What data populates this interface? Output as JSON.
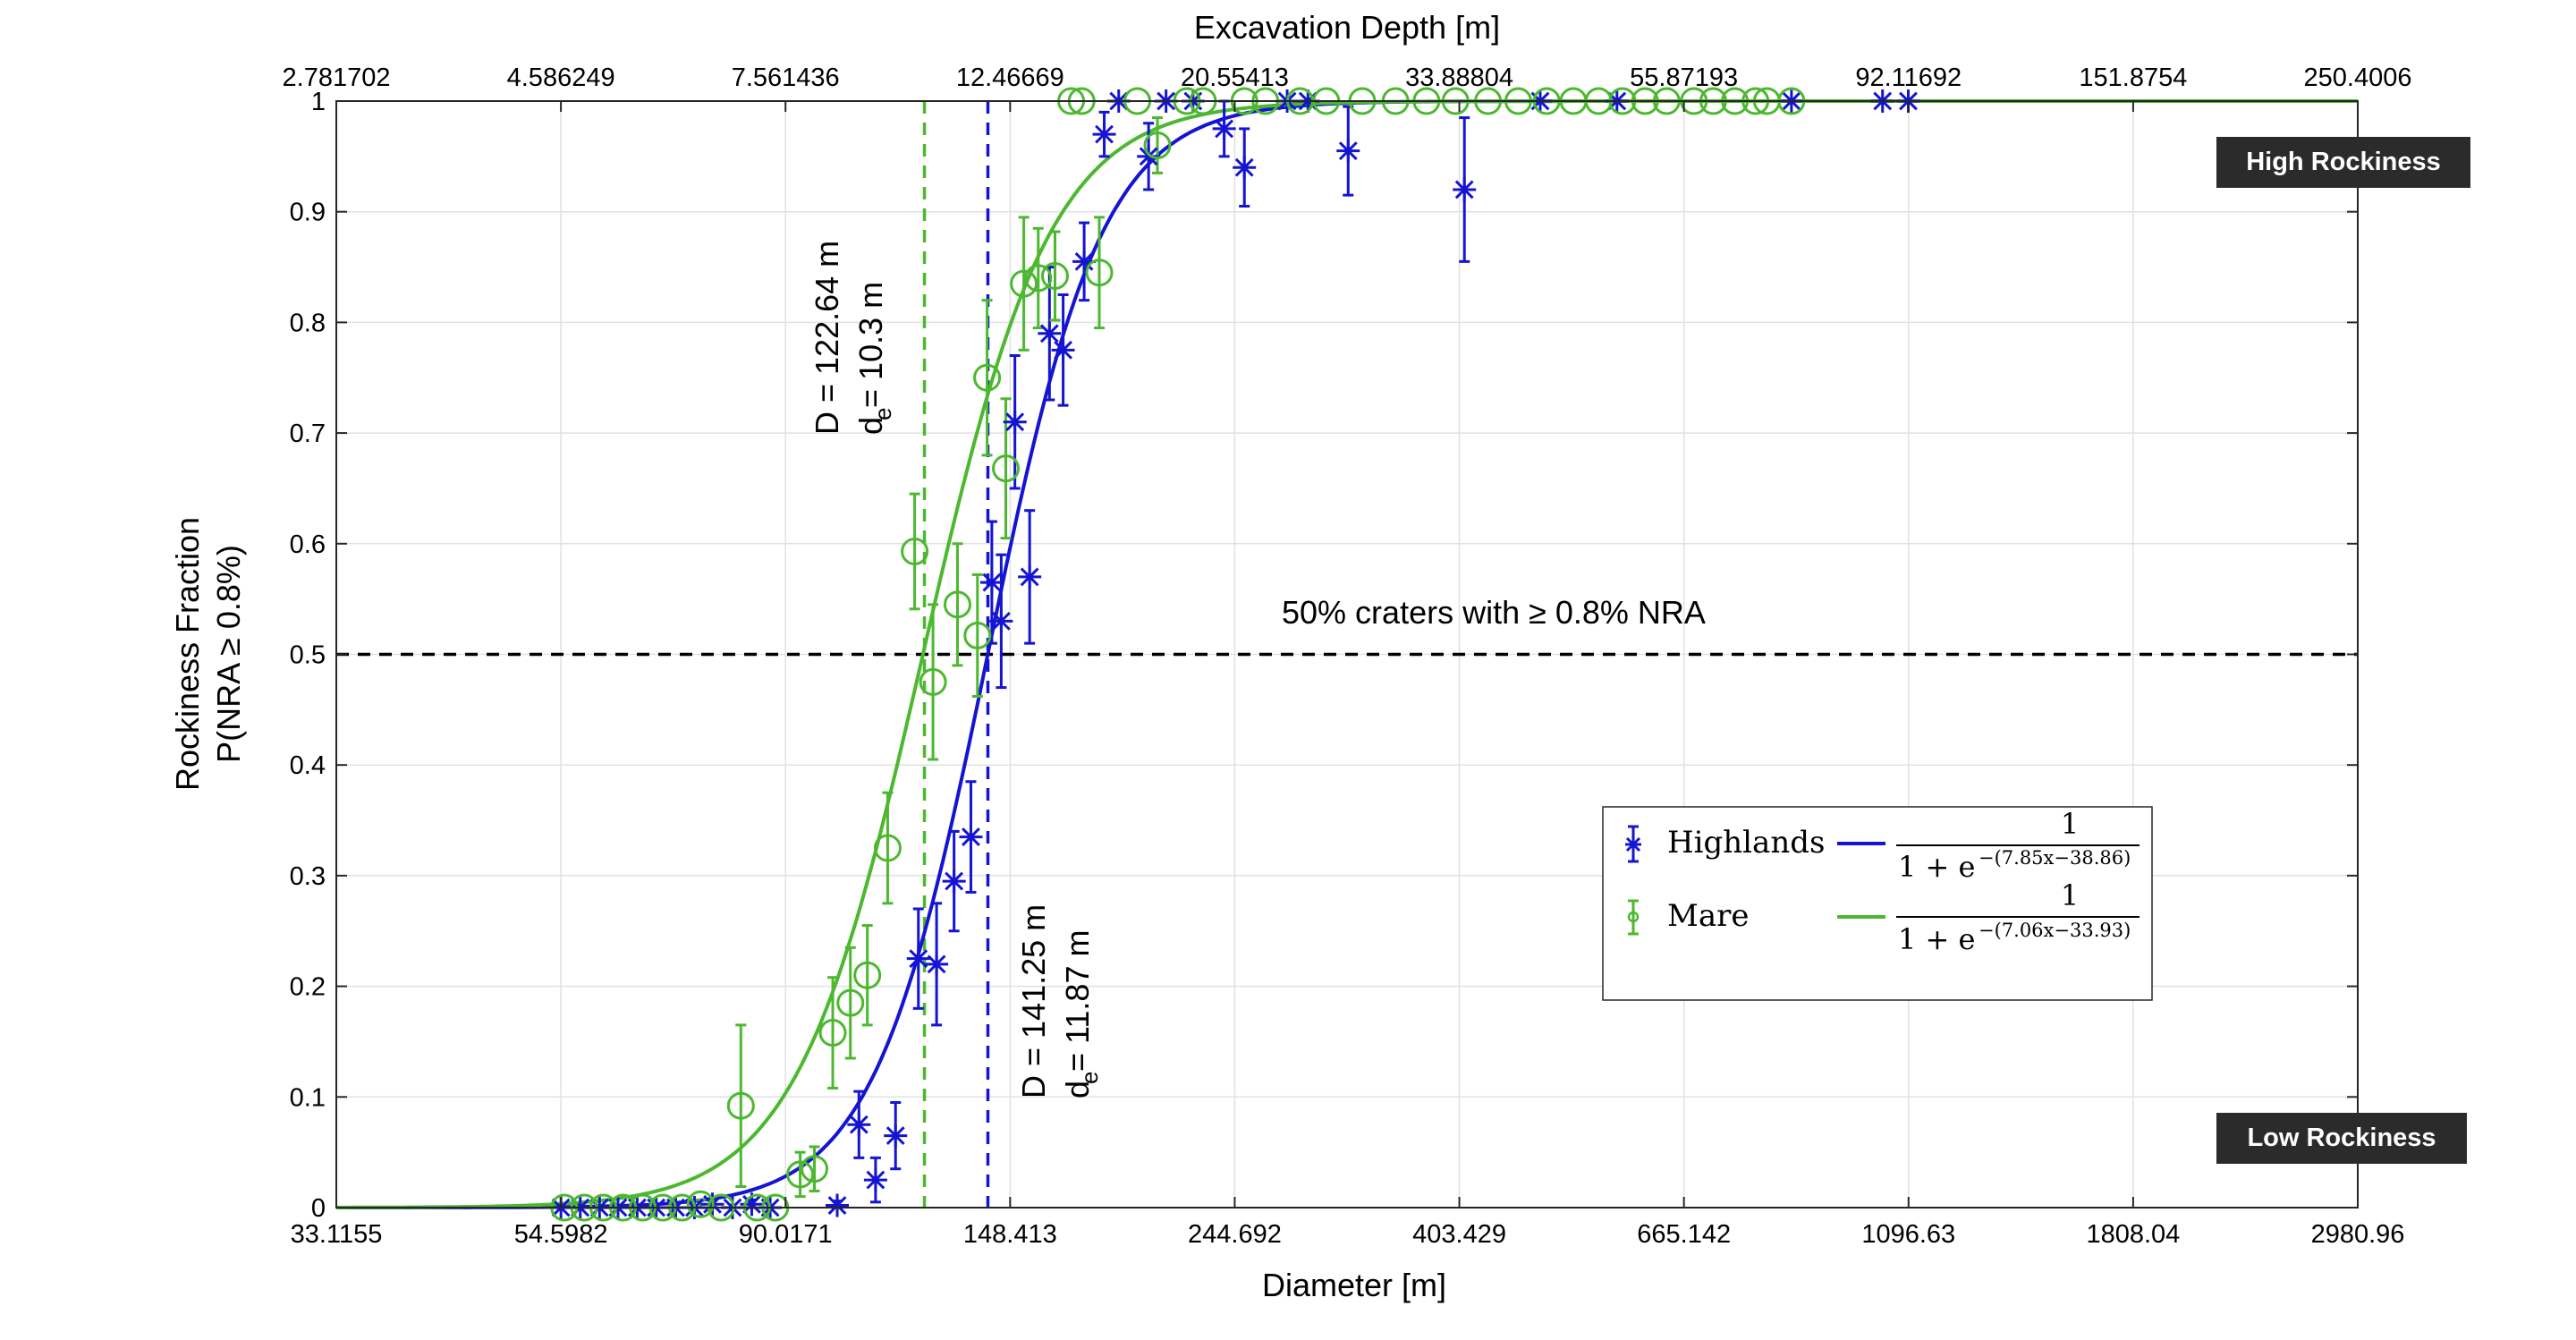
{
  "chart_data": {
    "type": "scatter",
    "title": "Excavation Depth [m]",
    "xlabel": "Diameter [m]",
    "ylabel_line1": "Rockiness Fraction",
    "ylabel_line2": "P(NRA ≥ 0.8%)",
    "x_scale": "log",
    "xlim": [
      33.1155,
      2980.96
    ],
    "ylim": [
      0,
      1
    ],
    "grid": true,
    "x_ticks": [
      "33.1155",
      "54.5982",
      "90.0171",
      "148.413",
      "244.692",
      "403.429",
      "665.142",
      "1096.63",
      "1808.04",
      "2980.96"
    ],
    "top_ticks": [
      "2.781702",
      "4.586249",
      "7.561436",
      "12.46669",
      "20.55413",
      "33.88804",
      "55.87193",
      "92.11692",
      "151.8754",
      "250.4006"
    ],
    "y_ticks": [
      "0",
      "0.1",
      "0.2",
      "0.3",
      "0.4",
      "0.5",
      "0.6",
      "0.7",
      "0.8",
      "0.9",
      "1"
    ],
    "series": [
      {
        "name": "Highlands",
        "color": "#1414d2",
        "marker": "asterisk",
        "points": [
          [
            54.6,
            0,
            0
          ],
          [
            57,
            0,
            0
          ],
          [
            59.5,
            0,
            0
          ],
          [
            62,
            0,
            0
          ],
          [
            64.7,
            0,
            0
          ],
          [
            67.5,
            0,
            0
          ],
          [
            70.5,
            0,
            0
          ],
          [
            73.5,
            0,
            0
          ],
          [
            76.5,
            0.003,
            0.005
          ],
          [
            80,
            0,
            0
          ],
          [
            83.5,
            0.003,
            0.004
          ],
          [
            87,
            0,
            0
          ],
          [
            101,
            0.002,
            0.004
          ],
          [
            106,
            0.075,
            0.03
          ],
          [
            110,
            0.025,
            0.02
          ],
          [
            115,
            0.065,
            0.03
          ],
          [
            121,
            0.225,
            0.045
          ],
          [
            126,
            0.22,
            0.055
          ],
          [
            131,
            0.295,
            0.045
          ],
          [
            136,
            0.335,
            0.05
          ],
          [
            142.5,
            0.565,
            0.055
          ],
          [
            145.5,
            0.53,
            0.06
          ],
          [
            150,
            0.71,
            0.06
          ],
          [
            155,
            0.57,
            0.06
          ],
          [
            162,
            0.79,
            0.06
          ],
          [
            167,
            0.775,
            0.05
          ],
          [
            175,
            0.855,
            0.035
          ],
          [
            183,
            0.97,
            0.02
          ],
          [
            189,
            1,
            0
          ],
          [
            202,
            0.95,
            0.03
          ],
          [
            210,
            1,
            0
          ],
          [
            223,
            1,
            0
          ],
          [
            239,
            0.975,
            0.025
          ],
          [
            250,
            0.94,
            0.035
          ],
          [
            275,
            1,
            0
          ],
          [
            288,
            1,
            0
          ],
          [
            315,
            0.955,
            0.04
          ],
          [
            408,
            0.92,
            0.065
          ],
          [
            483,
            1,
            0
          ],
          [
            573,
            1,
            0
          ],
          [
            845,
            1,
            0
          ],
          [
            1035,
            1,
            0
          ],
          [
            1096,
            1,
            0
          ]
        ],
        "fit_label": "1/(1 + e^-(7.85x-38.86))",
        "fit_a": 7.85,
        "fit_b": 38.86
      },
      {
        "name": "Mare",
        "color": "#4cb82f",
        "marker": "circle",
        "points": [
          [
            55,
            0,
            0
          ],
          [
            57.5,
            0,
            0
          ],
          [
            60,
            0,
            0
          ],
          [
            62.7,
            0,
            0
          ],
          [
            65.5,
            0,
            0
          ],
          [
            68.5,
            0,
            0
          ],
          [
            71.5,
            0,
            0
          ],
          [
            74.5,
            0.003,
            0.004
          ],
          [
            78,
            0,
            0
          ],
          [
            81.5,
            0.092,
            0.073
          ],
          [
            84.5,
            0,
            0
          ],
          [
            88,
            0,
            0
          ],
          [
            93,
            0.03,
            0.02
          ],
          [
            96,
            0.035,
            0.02
          ],
          [
            100,
            0.158,
            0.05
          ],
          [
            104,
            0.185,
            0.05
          ],
          [
            108,
            0.21,
            0.045
          ],
          [
            113,
            0.325,
            0.05
          ],
          [
            120,
            0.593,
            0.052
          ],
          [
            125,
            0.475,
            0.07
          ],
          [
            132,
            0.545,
            0.055
          ],
          [
            138,
            0.517,
            0.055
          ],
          [
            141,
            0.75,
            0.07
          ],
          [
            147,
            0.668,
            0.063
          ],
          [
            153,
            0.835,
            0.06
          ],
          [
            158,
            0.84,
            0.045
          ],
          [
            164,
            0.842,
            0.04
          ],
          [
            170,
            1,
            0
          ],
          [
            174,
            1,
            0
          ],
          [
            181,
            0.845,
            0.05
          ],
          [
            197,
            1,
            0
          ],
          [
            206,
            0.96,
            0.025
          ],
          [
            220,
            1,
            0
          ],
          [
            228,
            1,
            0
          ],
          [
            250,
            1,
            0
          ],
          [
            262,
            1,
            0
          ],
          [
            283,
            1,
            0
          ],
          [
            300,
            1,
            0
          ],
          [
            325,
            1,
            0
          ],
          [
            350,
            1,
            0
          ],
          [
            375,
            1,
            0
          ],
          [
            400,
            1,
            0
          ],
          [
            430,
            1,
            0
          ],
          [
            460,
            1,
            0
          ],
          [
            490,
            1,
            0
          ],
          [
            520,
            1,
            0
          ],
          [
            550,
            1,
            0
          ],
          [
            580,
            1,
            0
          ],
          [
            610,
            1,
            0
          ],
          [
            640,
            1,
            0
          ],
          [
            680,
            1,
            0
          ],
          [
            710,
            1,
            0
          ],
          [
            745,
            1,
            0
          ],
          [
            780,
            1,
            0
          ],
          [
            800,
            1,
            0
          ],
          [
            845,
            1,
            0
          ]
        ],
        "fit_label": "1/(1 + e^-(7.06x-33.93))",
        "fit_a": 7.06,
        "fit_b": 33.93
      }
    ],
    "reference_line_y": 0.5,
    "reference_label": "50% craters with ≥ 0.8% NRA",
    "vlines": [
      {
        "series": "Mare",
        "x": 122.64,
        "label_D": "D = 122.64 m",
        "label_de": "d = 10.3 m"
      },
      {
        "series": "Highlands",
        "x": 141.25,
        "label_D": "D = 141.25 m",
        "label_de": "d = 11.87 m"
      }
    ],
    "legend": {
      "placement": "center-right",
      "entries": [
        {
          "name": "Highlands",
          "fit": "1/(1 + e^-(7.85x-38.86))",
          "exponent": "−(7.85x−38.86)"
        },
        {
          "name": "Mare",
          "fit": "1/(1 + e^-(7.06x-33.93))",
          "exponent": "−(7.06x−33.93)"
        }
      ]
    },
    "annotations": {
      "high": "High Rockiness",
      "low": "Low Rockiness"
    }
  }
}
